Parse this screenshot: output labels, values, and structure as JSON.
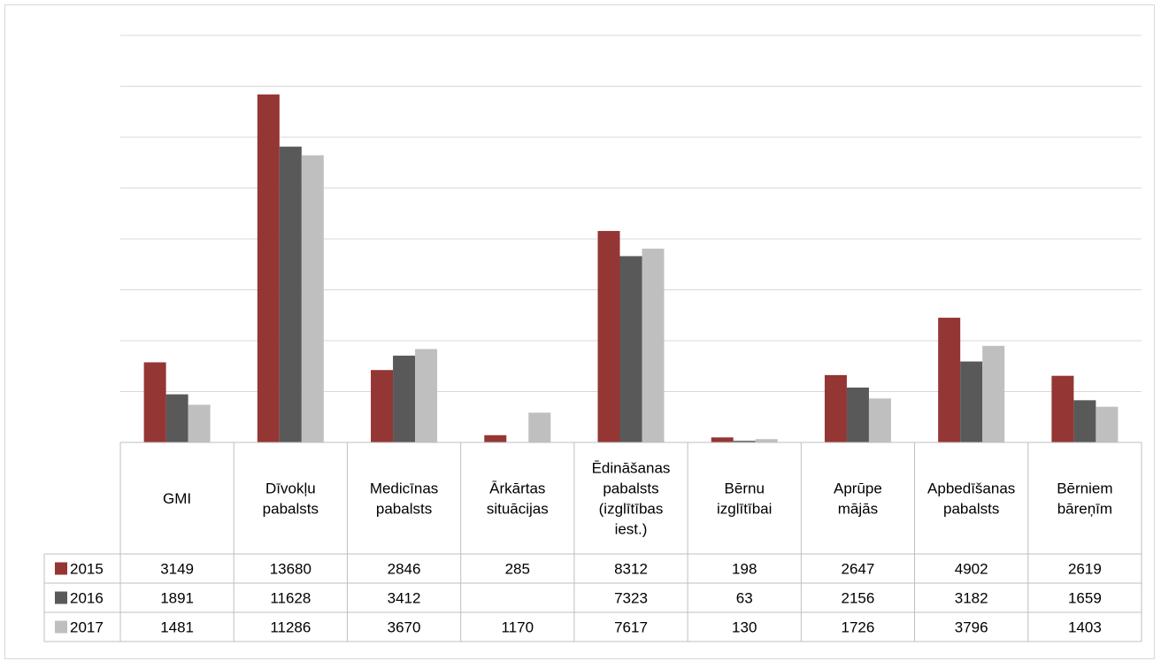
{
  "chart_data": {
    "type": "bar",
    "categories": [
      [
        "GMI"
      ],
      [
        "Dīvokļu",
        "pabalsts"
      ],
      [
        "Medicīnas",
        "pabalsts"
      ],
      [
        "Ārkārtas",
        "situācijas"
      ],
      [
        "Ēdināšanas",
        "pabalsts",
        "(izglītības",
        "iest.)"
      ],
      [
        "Bērnu",
        "izglītībai"
      ],
      [
        "Aprūpe",
        "mājās"
      ],
      [
        "Apbedīšanas",
        "pabalsts"
      ],
      [
        "Bērniem",
        "bāreņīm"
      ]
    ],
    "series": [
      {
        "name": "2015",
        "color": "#943634",
        "values": [
          3149,
          13680,
          2846,
          285,
          8312,
          198,
          2647,
          4902,
          2619
        ]
      },
      {
        "name": "2016",
        "color": "#595959",
        "values": [
          1891,
          11628,
          3412,
          null,
          7323,
          63,
          2156,
          3182,
          1659
        ]
      },
      {
        "name": "2017",
        "color": "#bfbfbf",
        "values": [
          1481,
          11286,
          3670,
          1170,
          7617,
          130,
          1726,
          3796,
          1403
        ]
      }
    ],
    "ylim": [
      0,
      16000
    ],
    "y_gridlines": [
      2000,
      4000,
      6000,
      8000,
      10000,
      12000,
      14000,
      16000
    ],
    "grid": true,
    "legend": "data-table-left"
  }
}
